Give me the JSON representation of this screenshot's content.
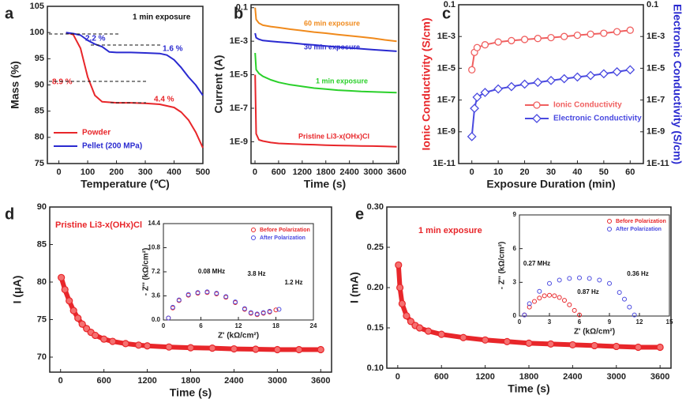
{
  "chart_data": [
    {
      "type": "line",
      "panel_label": "a",
      "xlabel": "Temperature (℃)",
      "ylabel": "Mass (%)",
      "xlim": [
        -40,
        500
      ],
      "xticks": [
        0,
        100,
        200,
        300,
        400,
        500
      ],
      "ylim": [
        75,
        105
      ],
      "yticks": [
        75,
        80,
        85,
        90,
        95,
        100,
        105
      ],
      "legend": "lower left",
      "annotations": [
        {
          "text": "1 min exposure",
          "color": "#111111"
        },
        {
          "text": "2.2 %",
          "color": "#2a2ad0"
        },
        {
          "text": "1.6 %",
          "color": "#2a2ad0"
        },
        {
          "text": "8.9 %",
          "color": "#e8262a"
        },
        {
          "text": "4.4 %",
          "color": "#e8262a"
        }
      ],
      "series": [
        {
          "name": "Powder",
          "color": "#e8262a",
          "x": [
            25,
            50,
            75,
            100,
            125,
            150,
            200,
            250,
            300,
            350,
            400,
            425,
            450,
            475,
            500
          ],
          "values": [
            100,
            99.6,
            97,
            91.5,
            88,
            86.8,
            86.6,
            86.6,
            86.5,
            86.3,
            85.7,
            84.8,
            83.3,
            81,
            78
          ]
        },
        {
          "name": "Pellet (200 MPa)",
          "color": "#2a2ad0",
          "x": [
            25,
            50,
            75,
            100,
            125,
            150,
            175,
            200,
            250,
            300,
            350,
            375,
            400,
            425,
            450,
            475,
            500
          ],
          "values": [
            100,
            99.8,
            99.5,
            98.5,
            97.8,
            97.3,
            96.3,
            96.2,
            96.2,
            96.1,
            96,
            95.7,
            94.8,
            93.3,
            91.5,
            90,
            88
          ]
        }
      ]
    },
    {
      "type": "line",
      "panel_label": "b",
      "xlabel": "Time (s)",
      "ylabel": "Current (A)",
      "log_y": true,
      "xlim": [
        -100,
        3650
      ],
      "xticks": [
        0,
        600,
        1200,
        1800,
        2400,
        3000,
        3600
      ],
      "ylim": [
        5e-11,
        0.15
      ],
      "yticks": [
        0.1,
        {
          "value": 0.001,
          "label": "1E-3"
        },
        {
          "value": 1e-05,
          "label": "1E-5"
        },
        {
          "value": 1e-07,
          "label": "1E-7"
        },
        {
          "value": 1e-09,
          "label": "1E-9"
        }
      ],
      "legend": "inline",
      "x": [
        5,
        30,
        100,
        200,
        400,
        600,
        900,
        1200,
        1500,
        1800,
        2100,
        2400,
        2700,
        3000,
        3300,
        3600
      ],
      "series": [
        {
          "name": "60 min exposure",
          "color": "#f08a1c",
          "values": [
            0.1,
            0.02,
            0.012,
            0.009,
            0.0075,
            0.0065,
            0.0052,
            0.0043,
            0.0035,
            0.003,
            0.0025,
            0.0021,
            0.0018,
            0.0015,
            0.0012,
            0.001
          ]
        },
        {
          "name": "30 min exposure",
          "color": "#2a2ad0",
          "values": [
            0.003,
            0.0016,
            0.0013,
            0.0011,
            0.001,
            0.0009,
            0.0008,
            0.00068,
            0.0006,
            0.00052,
            0.00045,
            0.0004,
            0.00035,
            0.00031,
            0.00028,
            0.00025
          ]
        },
        {
          "name": "1 min exposure",
          "color": "#2ad02a",
          "values": [
            0.0002,
            2e-05,
            1.2e-05,
            8e-06,
            5e-06,
            3.5e-06,
            2.5e-06,
            2e-06,
            1.6e-06,
            1.4e-06,
            1.2e-06,
            1.1e-06,
            1e-06,
            9.5e-07,
            9e-07,
            8.5e-07
          ]
        },
        {
          "name": "Pristine Li3-x(OHx)Cl",
          "color": "#e8262a",
          "values": [
            1e-05,
            3e-09,
            1.3e-09,
            1.1e-09,
            9e-10,
            8e-10,
            7.5e-10,
            7e-10,
            6.7e-10,
            6.3e-10,
            6e-10,
            5.8e-10,
            5.6e-10,
            5.5e-10,
            5.3e-10,
            5e-10
          ]
        }
      ]
    },
    {
      "type": "line",
      "panel_label": "c",
      "xlabel": "Exposure Duration (min)",
      "ylabel": "Ionic Conductivity (S/cm)",
      "ylabel_color": "#e8262a",
      "y2label": "Electronic Conductivity (S/cm)",
      "y2label_color": "#2a2ad0",
      "log_y": true,
      "xlim": [
        -5,
        65
      ],
      "xticks": [
        0,
        10,
        20,
        30,
        40,
        50,
        60
      ],
      "ylim": [
        1e-11,
        0.1
      ],
      "yticks": [
        0.1,
        {
          "value": 0.001,
          "label": "1E-3"
        },
        {
          "value": 1e-05,
          "label": "1E-5"
        },
        {
          "value": 1e-07,
          "label": "1E-7"
        },
        {
          "value": 1e-09,
          "label": "1E-9"
        },
        {
          "value": 1e-11,
          "label": "1E-11"
        }
      ],
      "y2lim": [
        1e-11,
        0.1
      ],
      "y2ticks": [
        0.1,
        {
          "value": 0.001,
          "label": "1E-3"
        },
        {
          "value": 1e-05,
          "label": "1E-5"
        },
        {
          "value": 1e-07,
          "label": "1E-7"
        },
        {
          "value": 1e-09,
          "label": "1E-9"
        },
        {
          "value": 1e-11,
          "label": "1E-11"
        }
      ],
      "legend": "lower right",
      "x": [
        0,
        1,
        2,
        5,
        10,
        15,
        20,
        25,
        30,
        35,
        40,
        45,
        50,
        55,
        60
      ],
      "series": [
        {
          "name": "Ionic Conductivity",
          "color": "#f06060",
          "marker": "circle",
          "values": [
            8e-06,
            0.0001,
            0.0002,
            0.0003,
            0.00045,
            0.00055,
            0.00065,
            0.00075,
            0.00085,
            0.001,
            0.0012,
            0.0014,
            0.0016,
            0.002,
            0.0025
          ]
        },
        {
          "name": "Electronic Conductivity",
          "color": "#4a4ae0",
          "marker": "diamond",
          "axis": "y2",
          "values": [
            5e-10,
            3e-08,
            1.5e-07,
            3e-07,
            5e-07,
            7e-07,
            1e-06,
            1.3e-06,
            1.7e-06,
            2.2e-06,
            2.8e-06,
            3.5e-06,
            4.5e-06,
            6e-06,
            8e-06
          ]
        }
      ]
    },
    {
      "type": "scatter",
      "panel_label": "d",
      "title": "Pristine Li3-x(OHx)Cl",
      "title_color": "#e8262a",
      "xlabel": "Time (s)",
      "ylabel": "I (μA)",
      "xlim": [
        -150,
        3750
      ],
      "xticks": [
        0,
        600,
        1200,
        1800,
        2400,
        3000,
        3600
      ],
      "ylim": [
        68,
        90
      ],
      "yticks": [
        70,
        75,
        80,
        85,
        90
      ],
      "x": [
        10,
        60,
        120,
        180,
        240,
        300,
        360,
        420,
        480,
        600,
        720,
        900,
        1080,
        1200,
        1500,
        1800,
        2100,
        2400,
        2700,
        3000,
        3300,
        3600
      ],
      "series": [
        {
          "color": "#e8262a",
          "marker": "circle",
          "values": [
            80.6,
            79,
            77.5,
            76.2,
            75.2,
            74.4,
            73.8,
            73.3,
            72.9,
            72.4,
            72.1,
            71.8,
            71.6,
            71.5,
            71.35,
            71.25,
            71.2,
            71.1,
            71.05,
            71,
            71,
            71
          ]
        }
      ]
    },
    {
      "type": "scatter",
      "xlabel": "Z' (kΩ/cm²)",
      "ylabel": "- Z'' (kΩ/cm²)",
      "xlim": [
        0,
        24
      ],
      "xticks": [
        0,
        6,
        12,
        18,
        24
      ],
      "ylim": [
        0,
        14.4
      ],
      "yticks": [
        {
          "value": 0,
          "label": "0.0"
        },
        3.6,
        7.2,
        10.8,
        14.4
      ],
      "legend": "upper right",
      "annotations": [
        {
          "text": "0.08 MHz",
          "color": "#111111"
        },
        {
          "text": "3.8 Hz",
          "color": "#111111"
        },
        {
          "text": "1.2 Hz",
          "color": "#111111"
        }
      ],
      "series": [
        {
          "name": "Before Polarization",
          "color": "#e8262a",
          "marker": "ring",
          "x": [
            0.8,
            1.5,
            2.5,
            4,
            5.5,
            7,
            8.5,
            10,
            11.5,
            13,
            14,
            15,
            16,
            17,
            18
          ],
          "values": [
            0.3,
            1.8,
            2.9,
            3.7,
            4,
            4.1,
            3.9,
            3.4,
            2.6,
            1.6,
            1,
            0.8,
            1,
            1.2,
            1.5
          ]
        },
        {
          "name": "After Polarization",
          "color": "#4a4ae0",
          "marker": "ring",
          "x": [
            0.8,
            1.5,
            2.5,
            4,
            5.5,
            7,
            8.5,
            10,
            11.5,
            13,
            14,
            15,
            16,
            17,
            18.5
          ],
          "values": [
            0.3,
            1.9,
            3,
            3.8,
            4.1,
            4.2,
            4,
            3.5,
            2.7,
            1.7,
            1.1,
            0.9,
            1.1,
            1.3,
            1.6
          ]
        }
      ]
    },
    {
      "type": "scatter",
      "panel_label": "e",
      "title": "1 min exposure",
      "title_color": "#e8262a",
      "xlabel": "Time (s)",
      "ylabel": "I (mA)",
      "xlim": [
        -150,
        3750
      ],
      "xticks": [
        0,
        600,
        1200,
        1800,
        2400,
        3000,
        3600
      ],
      "ylim": [
        0.1,
        0.3
      ],
      "yticks": [
        {
          "value": 0.1,
          "label": "0.10"
        },
        0.15,
        {
          "value": 0.2,
          "label": "0.20"
        },
        0.25,
        {
          "value": 0.3,
          "label": "0.30"
        }
      ],
      "x": [
        10,
        30,
        60,
        120,
        180,
        240,
        300,
        420,
        600,
        900,
        1200,
        1500,
        1800,
        2100,
        2400,
        2700,
        3000,
        3300,
        3600
      ],
      "series": [
        {
          "color": "#e8262a",
          "marker": "circle",
          "values": [
            0.228,
            0.2,
            0.18,
            0.165,
            0.158,
            0.153,
            0.15,
            0.146,
            0.142,
            0.138,
            0.135,
            0.133,
            0.131,
            0.13,
            0.129,
            0.128,
            0.127,
            0.126,
            0.126
          ]
        }
      ]
    },
    {
      "type": "scatter",
      "xlabel": "Z' (kΩ/cm²)",
      "ylabel": "- Z'' (kΩ/cm²)",
      "xlim": [
        0,
        15
      ],
      "xticks": [
        0,
        3,
        6,
        9,
        12,
        15
      ],
      "ylim": [
        0,
        9
      ],
      "yticks": [
        0,
        3,
        6,
        9
      ],
      "legend": "upper right",
      "annotations": [
        {
          "text": "0.27 MHz",
          "color": "#111111"
        },
        {
          "text": "0.87 Hz",
          "color": "#111111"
        },
        {
          "text": "0.36 Hz",
          "color": "#111111"
        }
      ],
      "series": [
        {
          "name": "Before Polarization",
          "color": "#e8262a",
          "marker": "ring",
          "x": [
            0.5,
            1,
            1.5,
            2,
            2.5,
            3,
            3.5,
            4,
            4.5,
            5,
            5.5,
            6
          ],
          "values": [
            0.1,
            0.8,
            1.3,
            1.6,
            1.8,
            1.85,
            1.8,
            1.65,
            1.4,
            1,
            0.5,
            0.1
          ]
        },
        {
          "name": "After Polarization",
          "color": "#4a4ae0",
          "marker": "ring",
          "x": [
            0.5,
            1,
            2,
            3,
            4,
            5,
            6,
            7,
            8,
            9,
            10,
            10.5,
            11,
            11.5
          ],
          "values": [
            0.1,
            1.1,
            2.2,
            2.9,
            3.2,
            3.35,
            3.4,
            3.35,
            3.2,
            2.9,
            2.1,
            1.5,
            0.8,
            0.1
          ]
        }
      ]
    }
  ]
}
